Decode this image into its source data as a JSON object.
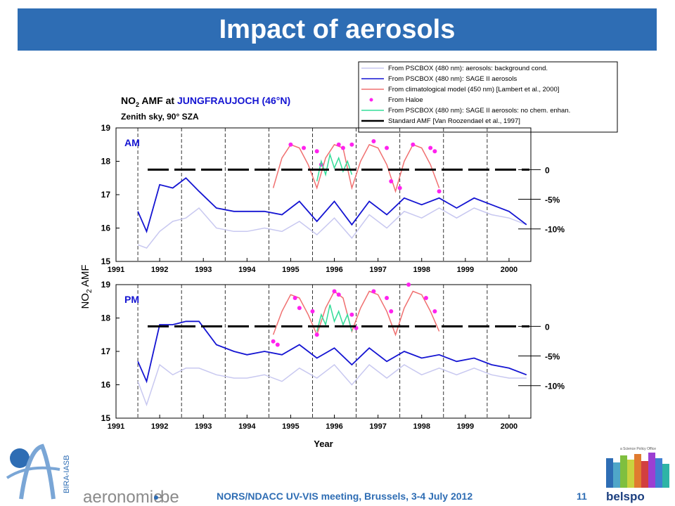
{
  "slide": {
    "title": "Impact of aerosols",
    "footer": "NORS/NDACC UV-VIS meeting, Brussels, 3-4 July 2012",
    "page_number": "11"
  },
  "logos": {
    "left_text": "aeronomie",
    "left_suffix": "be",
    "left_vertical": "BIRA-IASB",
    "right_tag": "a Science Policy Office",
    "right_text": "belspo"
  },
  "colors": {
    "title_bg": "#2e6db4",
    "background_cond": "#c8c8f0",
    "sage_aerosols": "#1414d2",
    "climatological": "#f07070",
    "haloe": "#ff22ee",
    "no_chem": "#33dd99",
    "standard_amf": "#000000"
  },
  "chart_data": {
    "type": "line",
    "title_prefix": "NO",
    "title_sub": "2",
    "title_mid": "AMF at",
    "title_site": "JUNGFRAUJOCH (46°N)",
    "subtitle": "Zenith sky, 90° SZA",
    "ylabel_prefix": "NO",
    "ylabel_sub": "2",
    "ylabel_suffix": "AMF",
    "xlabel": "Year",
    "xlim": [
      1991,
      2000.5
    ],
    "ylim": [
      15,
      19
    ],
    "yticks": [
      "15",
      "16",
      "17",
      "18",
      "19"
    ],
    "xticks": [
      "1991",
      "1992",
      "1993",
      "1994",
      "1995",
      "1996",
      "1997",
      "1998",
      "1999",
      "2000"
    ],
    "legend": [
      {
        "label": "From PSCBOX (480 nm): aerosols: background cond."
      },
      {
        "label": "From PSCBOX (480 nm): SAGE II aerosols"
      },
      {
        "label": "From climatological model (450 nm) [Lambert et al., 2000]"
      },
      {
        "label": "From Haloe"
      },
      {
        "label": "From PSCBOX (480 nm): SAGE II aerosols: no chem. enhan."
      },
      {
        "label": "Standard AMF [Van Roozendael et al., 1997]"
      }
    ],
    "panels": [
      {
        "label": "AM",
        "standard_amf": 17.75,
        "percent_labels": [
          "0",
          "-5%",
          "-10%"
        ],
        "series": [
          {
            "x": [
              1991.5,
              1991.7,
              1992.0,
              1992.3,
              1992.6,
              1992.9,
              1993.3,
              1993.7,
              1994.0,
              1994.4,
              1994.8,
              1995.2,
              1995.6,
              1996.0,
              1996.4,
              1996.8,
              1997.2,
              1997.6,
              1998.0,
              1998.4,
              1998.8,
              1999.2,
              1999.6,
              2000.0,
              2000.4
            ],
            "y": [
              15.5,
              15.4,
              15.9,
              16.2,
              16.3,
              16.6,
              16.0,
              15.9,
              15.9,
              16.0,
              15.9,
              16.2,
              15.8,
              16.3,
              15.7,
              16.4,
              16.0,
              16.5,
              16.3,
              16.6,
              16.3,
              16.6,
              16.4,
              16.3,
              16.1
            ]
          },
          {
            "x": [
              1991.5,
              1991.7,
              1992.0,
              1992.3,
              1992.6,
              1992.9,
              1993.3,
              1993.7,
              1994.0,
              1994.4,
              1994.8,
              1995.2,
              1995.6,
              1996.0,
              1996.4,
              1996.8,
              1997.2,
              1997.6,
              1998.0,
              1998.4,
              1998.8,
              1999.2,
              1999.6,
              2000.0,
              2000.4
            ],
            "y": [
              16.5,
              15.9,
              17.3,
              17.2,
              17.5,
              17.1,
              16.6,
              16.5,
              16.5,
              16.5,
              16.4,
              16.8,
              16.2,
              16.8,
              16.1,
              16.8,
              16.4,
              16.9,
              16.7,
              16.9,
              16.6,
              16.9,
              16.7,
              16.5,
              16.1
            ]
          },
          {
            "x": [
              1994.6,
              1994.8,
              1995.0,
              1995.2,
              1995.4,
              1995.6,
              1995.8,
              1996.0,
              1996.2,
              1996.4,
              1996.6,
              1996.8,
              1997.0,
              1997.2,
              1997.4,
              1997.6,
              1997.8,
              1998.0,
              1998.2,
              1998.4
            ],
            "y": [
              17.2,
              18.1,
              18.5,
              18.4,
              17.9,
              17.2,
              18.1,
              18.5,
              18.4,
              17.2,
              18.0,
              18.5,
              18.4,
              17.9,
              17.1,
              18.0,
              18.5,
              18.4,
              17.9,
              17.2
            ]
          },
          {
            "x": [
              1995.0,
              1995.3,
              1995.6,
              1995.7,
              1996.1,
              1996.2,
              1996.4,
              1996.9,
              1997.2,
              1997.3,
              1997.5,
              1997.8,
              1998.2,
              1998.3,
              1998.4
            ],
            "y": [
              18.5,
              18.4,
              18.3,
              17.9,
              18.5,
              18.4,
              18.5,
              18.6,
              18.4,
              17.4,
              17.2,
              18.5,
              18.4,
              18.3,
              17.1
            ]
          },
          {
            "x": [
              1995.6,
              1995.7,
              1995.8,
              1995.9,
              1996.0,
              1996.1,
              1996.2,
              1996.3,
              1996.4
            ],
            "y": [
              17.4,
              18.0,
              17.6,
              18.2,
              17.8,
              18.1,
              17.7,
              18.0,
              17.6
            ]
          }
        ]
      },
      {
        "label": "PM",
        "standard_amf": 17.75,
        "percent_labels": [
          "0",
          "-5%",
          "-10%"
        ],
        "series": [
          {
            "x": [
              1991.5,
              1991.7,
              1992.0,
              1992.3,
              1992.6,
              1992.9,
              1993.3,
              1993.7,
              1994.0,
              1994.4,
              1994.8,
              1995.2,
              1995.6,
              1996.0,
              1996.4,
              1996.8,
              1997.2,
              1997.6,
              1998.0,
              1998.4,
              1998.8,
              1999.2,
              1999.6,
              2000.0,
              2000.4
            ],
            "y": [
              16.1,
              15.4,
              16.6,
              16.3,
              16.5,
              16.5,
              16.3,
              16.2,
              16.2,
              16.3,
              16.1,
              16.5,
              16.2,
              16.6,
              16.0,
              16.6,
              16.2,
              16.6,
              16.3,
              16.5,
              16.3,
              16.5,
              16.3,
              16.2,
              16.2
            ]
          },
          {
            "x": [
              1991.5,
              1991.7,
              1992.0,
              1992.3,
              1992.6,
              1992.9,
              1993.3,
              1993.7,
              1994.0,
              1994.4,
              1994.8,
              1995.2,
              1995.6,
              1996.0,
              1996.4,
              1996.8,
              1997.2,
              1997.6,
              1998.0,
              1998.4,
              1998.8,
              1999.2,
              1999.6,
              2000.0,
              2000.4
            ],
            "y": [
              16.7,
              16.1,
              17.8,
              17.8,
              17.9,
              17.9,
              17.2,
              17.0,
              16.9,
              17.0,
              16.9,
              17.2,
              16.8,
              17.1,
              16.6,
              17.1,
              16.7,
              17.0,
              16.8,
              16.9,
              16.7,
              16.8,
              16.6,
              16.5,
              16.3
            ]
          },
          {
            "x": [
              1994.6,
              1994.8,
              1995.0,
              1995.2,
              1995.4,
              1995.6,
              1995.8,
              1996.0,
              1996.2,
              1996.4,
              1996.6,
              1996.8,
              1997.0,
              1997.2,
              1997.4,
              1997.6,
              1997.8,
              1998.0,
              1998.2,
              1998.4
            ],
            "y": [
              17.5,
              18.2,
              18.7,
              18.6,
              18.1,
              17.5,
              18.3,
              18.8,
              18.6,
              17.6,
              18.3,
              18.8,
              18.7,
              18.2,
              17.5,
              18.3,
              18.8,
              18.7,
              18.2,
              17.6
            ]
          },
          {
            "x": [
              1994.6,
              1994.7,
              1995.1,
              1995.2,
              1995.5,
              1995.6,
              1996.0,
              1996.1,
              1996.4,
              1996.5,
              1996.9,
              1997.2,
              1997.3,
              1997.7,
              1998.1,
              1998.3
            ],
            "y": [
              17.3,
              17.2,
              18.6,
              18.3,
              18.2,
              17.5,
              18.8,
              18.7,
              18.1,
              17.7,
              18.8,
              18.6,
              18.2,
              19.0,
              18.6,
              18.2
            ]
          },
          {
            "x": [
              1995.6,
              1995.7,
              1995.8,
              1995.9,
              1996.0,
              1996.1,
              1996.2,
              1996.3,
              1996.4
            ],
            "y": [
              17.6,
              18.1,
              17.8,
              18.4,
              17.9,
              18.2,
              17.8,
              18.1,
              17.6
            ]
          }
        ]
      }
    ]
  }
}
